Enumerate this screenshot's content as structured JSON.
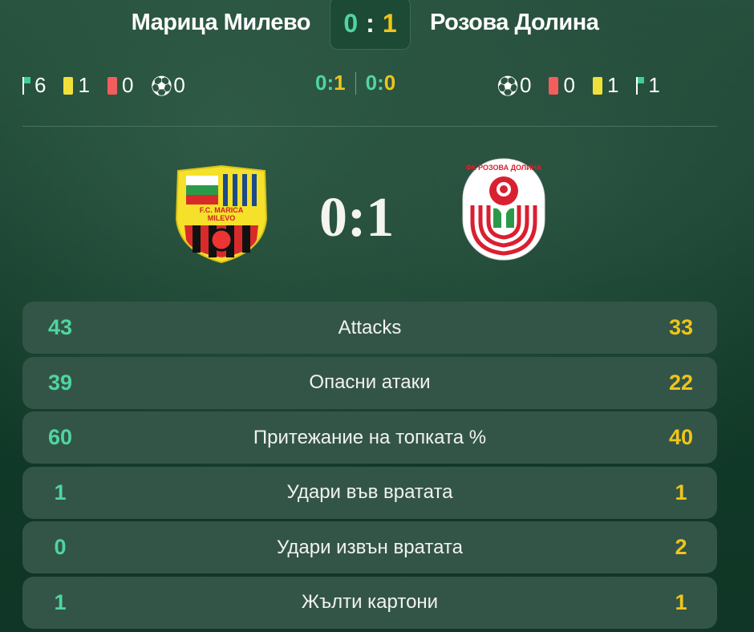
{
  "header": {
    "home": "Марица Милево",
    "away": "Розова Долина",
    "score_home": "0",
    "score_sep": ":",
    "score_away": "1"
  },
  "home_stats": {
    "corners": "6",
    "yellow": "1",
    "red": "0",
    "penalties": "0"
  },
  "away_stats": {
    "penalties": "0",
    "red": "0",
    "yellow": "1",
    "corners": "1"
  },
  "halves": {
    "first_home": "0",
    "first_away": "1",
    "second_home": "0",
    "second_away": "0",
    "sep": ":"
  },
  "big_score": "0:1",
  "logos": {
    "home_text": "F.C. MARICA MILEVO",
    "away_text": "ФК РОЗОВА ДОЛИНА"
  },
  "colors": {
    "home": "#4fd5a0",
    "away": "#f0c419"
  },
  "rows": [
    {
      "home": "43",
      "label": "Attacks",
      "away": "33"
    },
    {
      "home": "39",
      "label": "Опасни атаки",
      "away": "22"
    },
    {
      "home": "60",
      "label": "Притежание на топката %",
      "away": "40"
    },
    {
      "home": "1",
      "label": "Удари във вратата",
      "away": "1"
    },
    {
      "home": "0",
      "label": "Удари извън вратата",
      "away": "2"
    },
    {
      "home": "1",
      "label": "Жълти картони",
      "away": "1"
    }
  ]
}
